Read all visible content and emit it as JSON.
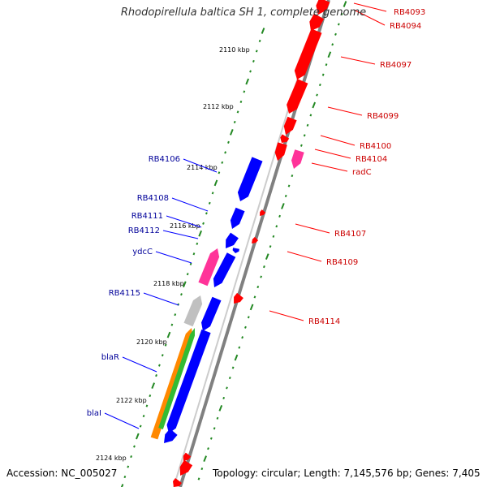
{
  "title": "Rhodopirellula baltica SH 1, complete genome",
  "accession": "Accession: NC_005027",
  "topology": "Topology: circular; Length: 7,145,576 bp; Genes: 7,405",
  "colors": {
    "forward_gene": "#ff0000",
    "reverse_gene": "#0000ff",
    "highlight_gene": "#ff3399",
    "forward_label": "#cc0000",
    "reverse_label": "#000099",
    "tick": "#228822",
    "backbone": "#808080"
  },
  "kbp_ticks": [
    "2110 kbp",
    "2112 kbp",
    "2114 kbp",
    "2116 kbp",
    "2118 kbp",
    "2120 kbp",
    "2122 kbp",
    "2124 kbp"
  ],
  "forward_labels": [
    "RB4093",
    "RB4094",
    "RB4097",
    "RB4099",
    "RB4100",
    "RB4104",
    "radC",
    "RB4107",
    "RB4109",
    "RB4114"
  ],
  "reverse_labels": [
    "RB4106",
    "RB4108",
    "RB4111",
    "RB4112",
    "ydcC",
    "RB4115",
    "blaR",
    "blaI"
  ]
}
